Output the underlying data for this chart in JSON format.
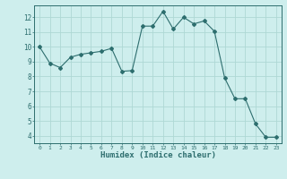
{
  "x": [
    0,
    1,
    2,
    3,
    4,
    5,
    6,
    7,
    8,
    9,
    10,
    11,
    12,
    13,
    14,
    15,
    16,
    17,
    18,
    19,
    20,
    21,
    22,
    23
  ],
  "y": [
    10.0,
    8.9,
    8.6,
    9.3,
    9.5,
    9.6,
    9.7,
    9.9,
    8.35,
    8.4,
    11.4,
    11.4,
    12.4,
    11.2,
    12.0,
    11.55,
    11.75,
    11.05,
    7.9,
    6.5,
    6.5,
    4.8,
    3.9,
    3.9
  ],
  "line_color": "#2d6e6e",
  "marker": "D",
  "marker_size": 2.0,
  "bg_color": "#ceeeed",
  "grid_color": "#aed8d5",
  "tick_color": "#2d6e6e",
  "xlabel": "Humidex (Indice chaleur)",
  "xlabel_fontsize": 6.5,
  "xlim": [
    -0.5,
    23.5
  ],
  "ylim": [
    3.5,
    12.8
  ],
  "xticks": [
    0,
    1,
    2,
    3,
    4,
    5,
    6,
    7,
    8,
    9,
    10,
    11,
    12,
    13,
    14,
    15,
    16,
    17,
    18,
    19,
    20,
    21,
    22,
    23
  ],
  "yticks": [
    4,
    5,
    6,
    7,
    8,
    9,
    10,
    11,
    12
  ],
  "tick_fontsize_x": 4.5,
  "tick_fontsize_y": 5.5
}
